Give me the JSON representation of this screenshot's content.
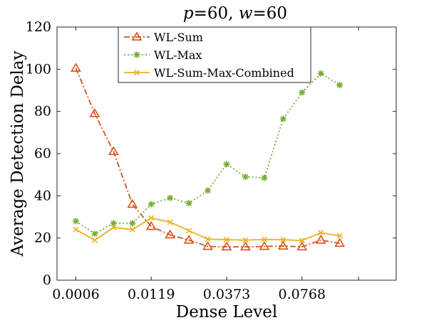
{
  "chart_data": {
    "type": "line",
    "title": "p=60, w=60",
    "title_parts": {
      "p_symbol": "p",
      "p_value": "=60, ",
      "w_symbol": "w",
      "w_value": "=60"
    },
    "xlabel": "Dense Level",
    "ylabel": "Average Detection Delay",
    "x": [
      1,
      2,
      3,
      4,
      5,
      6,
      7,
      8,
      9,
      10,
      11,
      12,
      13,
      14,
      15,
      16,
      17
    ],
    "xlim": [
      0,
      18
    ],
    "xtick_positions": [
      1,
      5,
      9,
      13,
      16
    ],
    "xtick_labels": [
      "0.0006",
      "0.0119",
      "0.0373",
      "0.0768",
      ""
    ],
    "ylim": [
      0,
      120
    ],
    "yticks": [
      0,
      20,
      40,
      60,
      80,
      100,
      120
    ],
    "grid": false,
    "legend_location": "top-center",
    "series": [
      {
        "name": "WL-Sum",
        "color": "#D95319",
        "marker": "triangle",
        "line_style": "dash-dot",
        "values": [
          100.5,
          79,
          61,
          36,
          25.5,
          21.5,
          19,
          16,
          15.8,
          15.8,
          16,
          16.2,
          15.8,
          19,
          17.5,
          null,
          null
        ]
      },
      {
        "name": "WL-Max",
        "color": "#77AC30",
        "marker": "asterisk",
        "line_style": "dotted",
        "values": [
          28,
          22,
          27,
          27,
          36,
          39,
          36.5,
          42.5,
          55,
          49,
          48.5,
          76.5,
          89,
          98,
          92.5,
          null,
          null
        ]
      },
      {
        "name": "WL-Sum-Max-Combined",
        "color": "#EDB120",
        "marker": "x",
        "line_style": "solid",
        "values": [
          24,
          19,
          25,
          24,
          29.5,
          27.5,
          23.5,
          19.5,
          19.2,
          19,
          19.3,
          19.2,
          18.8,
          22.5,
          21,
          null,
          null
        ]
      }
    ]
  }
}
